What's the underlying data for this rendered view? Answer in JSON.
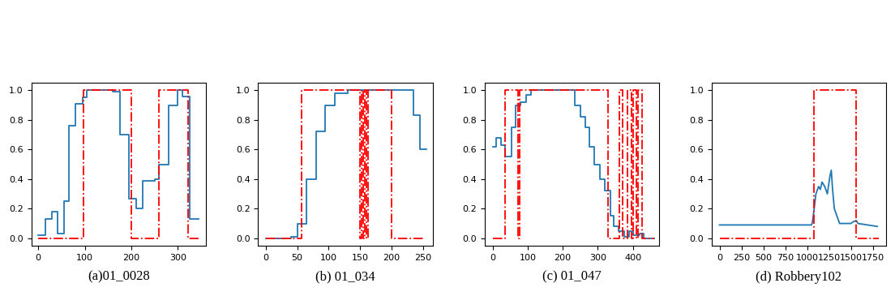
{
  "chart_data": [
    {
      "type": "line",
      "xlabel": "(a)01_0028",
      "xlim": [
        -15,
        360
      ],
      "xticks": [
        0,
        100,
        200,
        300
      ],
      "ylim": [
        -0.05,
        1.05
      ],
      "yticks": [
        {
          "value": 0.0,
          "label": "0.0"
        },
        {
          "value": 0.2,
          "label": "0.2"
        },
        {
          "value": 0.4,
          "label": "0.4"
        },
        {
          "value": 0.6,
          "label": "0.6"
        },
        {
          "value": 0.8,
          "label": "0.8"
        },
        {
          "value": 1.0,
          "label": "1.0"
        }
      ],
      "series": [
        {
          "color": "#1f77b4",
          "line_style": "steps",
          "x": [
            0,
            16,
            30,
            42,
            55,
            65,
            80,
            95,
            105,
            130,
            160,
            175,
            195,
            210,
            225,
            250,
            260,
            280,
            300,
            310,
            325,
            345
          ],
          "values": [
            0.02,
            0.13,
            0.18,
            0.03,
            0.25,
            0.76,
            0.91,
            0.95,
            1.0,
            1.0,
            0.99,
            0.7,
            0.27,
            0.2,
            0.39,
            0.4,
            0.5,
            0.9,
            1.0,
            0.96,
            0.13,
            0.13
          ]
        },
        {
          "color": "#ff0000",
          "line_style": "dashdot",
          "x": [
            0,
            98,
            98,
            200,
            200,
            260,
            260,
            322,
            322,
            345
          ],
          "values": [
            0,
            0,
            1,
            1,
            0,
            0,
            1,
            1,
            0,
            0
          ]
        }
      ]
    },
    {
      "type": "line",
      "xlabel": "(b) 01_034",
      "xlim": [
        -12,
        265
      ],
      "xticks": [
        0,
        50,
        100,
        150,
        200,
        250
      ],
      "ylim": [
        -0.05,
        1.05
      ],
      "yticks": [
        {
          "value": 0.0,
          "label": "0.0"
        },
        {
          "value": 0.2,
          "label": "0.2"
        },
        {
          "value": 0.4,
          "label": "0.4"
        },
        {
          "value": 0.6,
          "label": "0.6"
        },
        {
          "value": 0.8,
          "label": "0.8"
        },
        {
          "value": 1.0,
          "label": "1.0"
        }
      ],
      "series": [
        {
          "color": "#1f77b4",
          "line_style": "steps",
          "x": [
            0,
            40,
            50,
            65,
            80,
            95,
            110,
            130,
            230,
            235,
            245,
            255
          ],
          "values": [
            0.0,
            0.01,
            0.1,
            0.4,
            0.72,
            0.9,
            0.98,
            1.0,
            1.0,
            0.83,
            0.6,
            0.6
          ]
        },
        {
          "color": "#ff0000",
          "line_style": "dashdot",
          "x": [
            0,
            57,
            57,
            150,
            150,
            152,
            152,
            155,
            155,
            157,
            157,
            160,
            160,
            162,
            162,
            200,
            200,
            250
          ],
          "values": [
            0,
            0,
            1,
            1,
            0,
            0,
            1,
            1,
            0,
            0,
            1,
            1,
            0,
            0,
            1,
            1,
            0,
            0
          ]
        }
      ]
    },
    {
      "type": "line",
      "xlabel": "(c) 01_047",
      "xlim": [
        -22,
        475
      ],
      "xticks": [
        0,
        100,
        200,
        300,
        400
      ],
      "ylim": [
        -0.05,
        1.05
      ],
      "yticks": [
        {
          "value": 0.0,
          "label": "0.0"
        },
        {
          "value": 0.2,
          "label": "0.2"
        },
        {
          "value": 0.4,
          "label": "0.4"
        },
        {
          "value": 0.6,
          "label": "0.6"
        },
        {
          "value": 0.8,
          "label": "0.8"
        },
        {
          "value": 1.0,
          "label": "1.0"
        }
      ],
      "series": [
        {
          "color": "#1f77b4",
          "line_style": "steps",
          "x": [
            0,
            10,
            25,
            35,
            55,
            65,
            80,
            95,
            110,
            220,
            235,
            250,
            265,
            275,
            290,
            305,
            320,
            335,
            345,
            360,
            375,
            390,
            400,
            420,
            430,
            460
          ],
          "values": [
            0.62,
            0.68,
            0.63,
            0.55,
            0.75,
            0.9,
            0.92,
            0.97,
            1.0,
            1.0,
            0.9,
            0.82,
            0.75,
            0.62,
            0.5,
            0.4,
            0.32,
            0.15,
            0.08,
            0.05,
            0.01,
            0.05,
            0.02,
            0.03,
            0.0,
            0.0
          ]
        },
        {
          "color": "#ff0000",
          "line_style": "dashdot",
          "x": [
            0,
            35,
            35,
            73,
            73,
            76,
            76,
            330,
            330,
            362,
            362,
            370,
            370,
            385,
            385,
            395,
            395,
            400,
            400,
            410,
            410,
            415,
            415,
            425,
            425,
            460
          ],
          "values": [
            0,
            0,
            1,
            1,
            0,
            0,
            1,
            1,
            0,
            0,
            1,
            1,
            0,
            0,
            1,
            1,
            0,
            0,
            1,
            1,
            0,
            0,
            1,
            1,
            0,
            0
          ]
        }
      ]
    },
    {
      "type": "line",
      "xlabel": "(d) Robbery102",
      "xlim": [
        -90,
        1900
      ],
      "xticks": [
        0,
        250,
        500,
        750,
        1000,
        1250,
        1500,
        1750
      ],
      "ylim": [
        -0.05,
        1.05
      ],
      "yticks": [
        {
          "value": 0.0,
          "label": "0.0"
        },
        {
          "value": 0.2,
          "label": "0.2"
        },
        {
          "value": 0.4,
          "label": "0.4"
        },
        {
          "value": 0.6,
          "label": "0.6"
        },
        {
          "value": 0.8,
          "label": "0.8"
        },
        {
          "value": 1.0,
          "label": "1.0"
        }
      ],
      "series": [
        {
          "color": "#1f77b4",
          "line_style": "solid",
          "x": [
            0,
            1050,
            1060,
            1080,
            1100,
            1130,
            1150,
            1170,
            1200,
            1230,
            1260,
            1275,
            1290,
            1310,
            1340,
            1370,
            1500,
            1520,
            1560,
            1580,
            1800
          ],
          "values": [
            0.09,
            0.09,
            0.11,
            0.2,
            0.3,
            0.35,
            0.33,
            0.38,
            0.35,
            0.3,
            0.42,
            0.46,
            0.33,
            0.2,
            0.15,
            0.1,
            0.1,
            0.11,
            0.12,
            0.1,
            0.08
          ]
        },
        {
          "color": "#ff0000",
          "line_style": "dashdot",
          "x": [
            0,
            1075,
            1075,
            1560,
            1560,
            1820
          ],
          "values": [
            0,
            0,
            1,
            1,
            0,
            0
          ]
        }
      ]
    }
  ]
}
